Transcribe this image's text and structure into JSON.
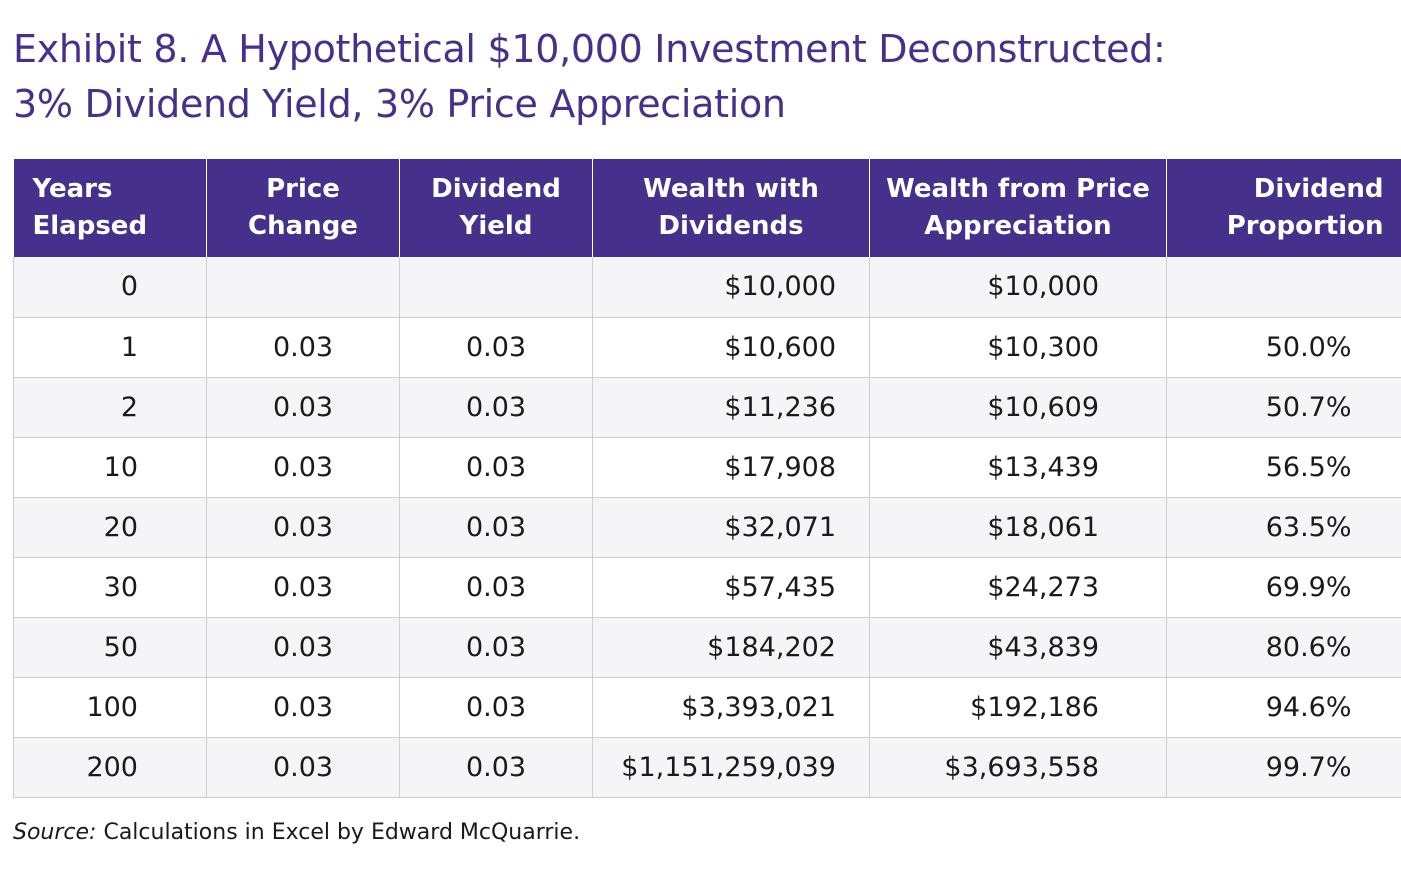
{
  "title": {
    "line1": "Exhibit 8. A Hypothetical $10,000 Investment Deconstructed:",
    "line2": "3% Dividend Yield, 3% Price Appreciation"
  },
  "table": {
    "headers": [
      [
        "Years",
        "Elapsed"
      ],
      [
        "Price",
        "Change"
      ],
      [
        "Dividend",
        "Yield"
      ],
      [
        "Wealth with",
        "Dividends"
      ],
      [
        "Wealth from Price",
        "Appreciation"
      ],
      [
        "Dividend",
        "Proportion"
      ]
    ],
    "rows": [
      [
        "0",
        "",
        "",
        "$10,000",
        "$10,000",
        ""
      ],
      [
        "1",
        "0.03",
        "0.03",
        "$10,600",
        "$10,300",
        "50.0%"
      ],
      [
        "2",
        "0.03",
        "0.03",
        "$11,236",
        "$10,609",
        "50.7%"
      ],
      [
        "10",
        "0.03",
        "0.03",
        "$17,908",
        "$13,439",
        "56.5%"
      ],
      [
        "20",
        "0.03",
        "0.03",
        "$32,071",
        "$18,061",
        "63.5%"
      ],
      [
        "30",
        "0.03",
        "0.03",
        "$57,435",
        "$24,273",
        "69.9%"
      ],
      [
        "50",
        "0.03",
        "0.03",
        "$184,202",
        "$43,839",
        "80.6%"
      ],
      [
        "100",
        "0.03",
        "0.03",
        "$3,393,021",
        "$192,186",
        "94.6%"
      ],
      [
        "200",
        "0.03",
        "0.03",
        "$1,151,259,039",
        "$3,693,558",
        "99.7%"
      ]
    ]
  },
  "source": {
    "label": "Source:",
    "text": " Calculations in Excel by Edward McQuarrie."
  },
  "colors": {
    "accent": "#45308b",
    "row_alt": "#f5f5f8",
    "grid": "#cfcfcf"
  }
}
